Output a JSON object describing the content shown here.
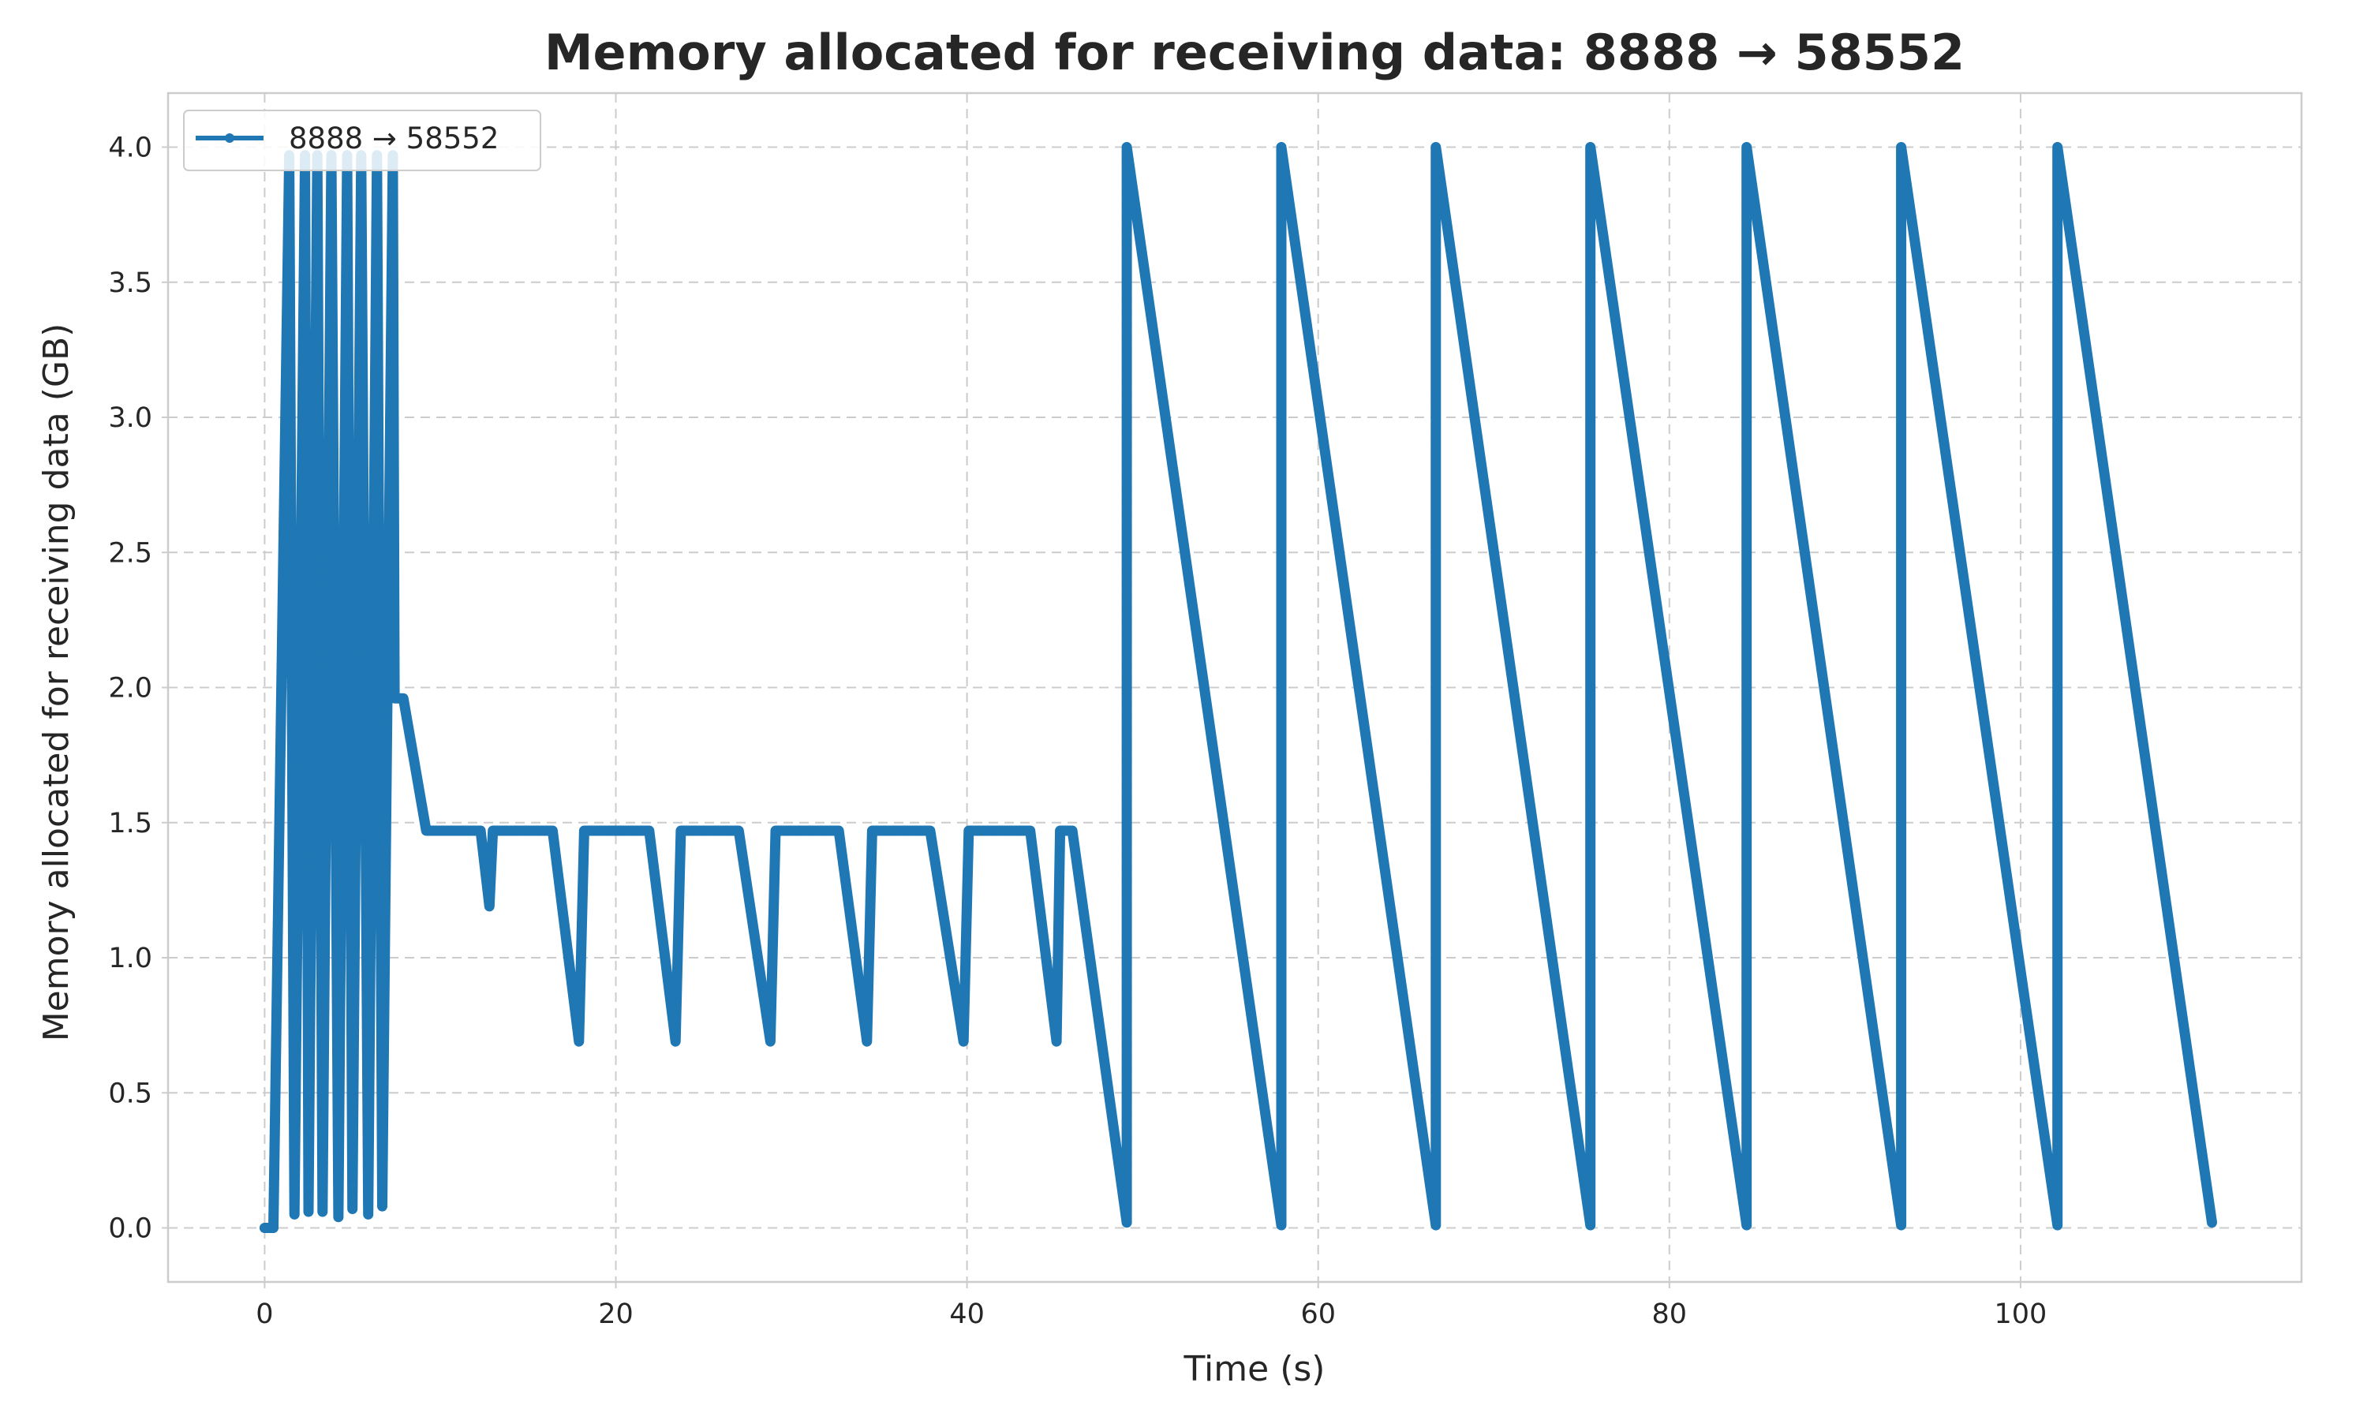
{
  "chart_data": {
    "type": "line",
    "title": "Memory allocated for receiving data: 8888 → 58552",
    "xlabel": "Time (s)",
    "ylabel": "Memory allocated for receiving data (GB)",
    "xlim": [
      -5.5,
      116
    ],
    "ylim": [
      -0.2,
      4.2
    ],
    "xticks": [
      0,
      20,
      40,
      60,
      80,
      100
    ],
    "yticks": [
      0.0,
      0.5,
      1.0,
      1.5,
      2.0,
      2.5,
      3.0,
      3.5,
      4.0
    ],
    "xtick_labels": [
      "0",
      "20",
      "40",
      "60",
      "80",
      "100"
    ],
    "ytick_labels": [
      "0.0",
      "0.5",
      "1.0",
      "1.5",
      "2.0",
      "2.5",
      "3.0",
      "3.5",
      "4.0"
    ],
    "grid": true,
    "legend_position": "upper-left",
    "series": [
      {
        "name": "8888 → 58552",
        "color": "#1f77b4",
        "marker": "dot",
        "x": [
          0,
          0.5,
          1.4,
          1.7,
          2.3,
          2.5,
          3.0,
          3.3,
          3.8,
          4.2,
          4.7,
          5.0,
          5.5,
          5.9,
          6.4,
          6.7,
          7.3,
          7.4,
          7.9,
          9.2,
          12.3,
          12.8,
          13.0,
          16.4,
          17.9,
          18.2,
          21.9,
          23.4,
          23.7,
          27.0,
          28.8,
          29.1,
          32.7,
          34.3,
          34.6,
          37.9,
          39.8,
          40.1,
          43.6,
          45.1,
          45.3,
          46.0,
          49.1,
          49.1,
          57.9,
          57.9,
          66.7,
          66.7,
          75.5,
          75.5,
          84.4,
          84.4,
          93.2,
          93.2,
          102.1,
          102.1,
          110.9
        ],
        "y": [
          0.0,
          0.0,
          3.97,
          0.05,
          3.97,
          0.06,
          3.97,
          0.06,
          3.97,
          0.04,
          3.97,
          0.07,
          3.97,
          0.05,
          3.97,
          0.08,
          3.97,
          1.96,
          1.96,
          1.47,
          1.47,
          1.19,
          1.47,
          1.47,
          0.69,
          1.47,
          1.47,
          0.69,
          1.47,
          1.47,
          0.69,
          1.47,
          1.47,
          0.69,
          1.47,
          1.47,
          0.69,
          1.47,
          1.47,
          0.69,
          1.47,
          1.47,
          0.02,
          4.0,
          0.01,
          4.0,
          0.01,
          4.0,
          0.01,
          4.0,
          0.01,
          4.0,
          0.01,
          4.0,
          0.01,
          4.0,
          0.02
        ]
      }
    ]
  }
}
